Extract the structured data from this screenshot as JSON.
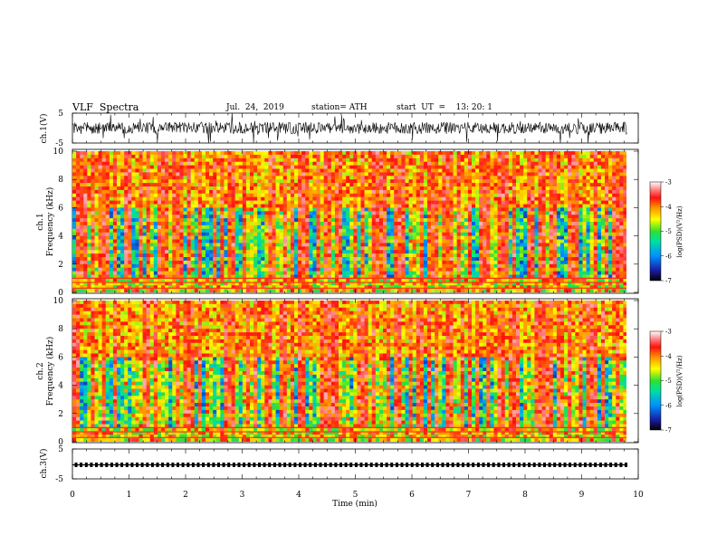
{
  "header": {
    "title": "VLF  Spectra",
    "date": "Jul.  24,  2019",
    "station": "station= ATH",
    "start_ut": "start  UT  =    13: 20: 1"
  },
  "chart_data": [
    {
      "type": "line",
      "panel": "waveform-ch1",
      "ylabel": "ch.1(V)",
      "yticks": [
        "5",
        "-5"
      ],
      "ylim": [
        -5,
        5
      ],
      "xlim": [
        0,
        10
      ],
      "description_level": "dense noisy waveform centred near 0 V"
    },
    {
      "type": "heatmap",
      "panel": "spectrogram-ch1",
      "ylabel": "ch.1\nFrequency  (kHz)",
      "ylabel_line1": "ch.1",
      "ylabel_line2": "Frequency  (kHz)",
      "yticks": [
        "0",
        "2",
        "4",
        "6",
        "8",
        "10"
      ],
      "ylim": [
        0,
        10
      ],
      "xlim": [
        0,
        10
      ],
      "colorbar": {
        "label": "log(PSD)(V²/Hz)",
        "ticks": [
          "-3",
          "-4",
          "-5",
          "-6",
          "-7"
        ],
        "range": [
          -7,
          -3
        ],
        "colors": [
          "#000000",
          "#2020c0",
          "#00a0ff",
          "#00e040",
          "#ffff00",
          "#ff9000",
          "#ff1010",
          "#ffffff"
        ]
      }
    },
    {
      "type": "heatmap",
      "panel": "spectrogram-ch2",
      "ylabel_line1": "ch.2",
      "ylabel_line2": "Frequency  (kHz)",
      "yticks": [
        "0",
        "2",
        "4",
        "6",
        "8",
        "10"
      ],
      "ylim": [
        0,
        10
      ],
      "xlim": [
        0,
        10
      ],
      "colorbar": {
        "label": "log(PSD)(V²/Hz)",
        "ticks": [
          "-3",
          "-4",
          "-5",
          "-6",
          "-7"
        ],
        "range": [
          -7,
          -3
        ]
      }
    },
    {
      "type": "line",
      "panel": "waveform-ch3",
      "ylabel": "ch.3(V)",
      "yticks": [
        "5",
        "-5"
      ],
      "ylim": [
        -5,
        5
      ],
      "xlim": [
        0,
        10
      ],
      "description_level": "flat trace with periodic pulses near -0.3 V"
    }
  ],
  "xaxis": {
    "label": "Time  (min)",
    "ticks": [
      "0",
      "1",
      "2",
      "3",
      "4",
      "5",
      "6",
      "7",
      "8",
      "9",
      "10"
    ]
  }
}
